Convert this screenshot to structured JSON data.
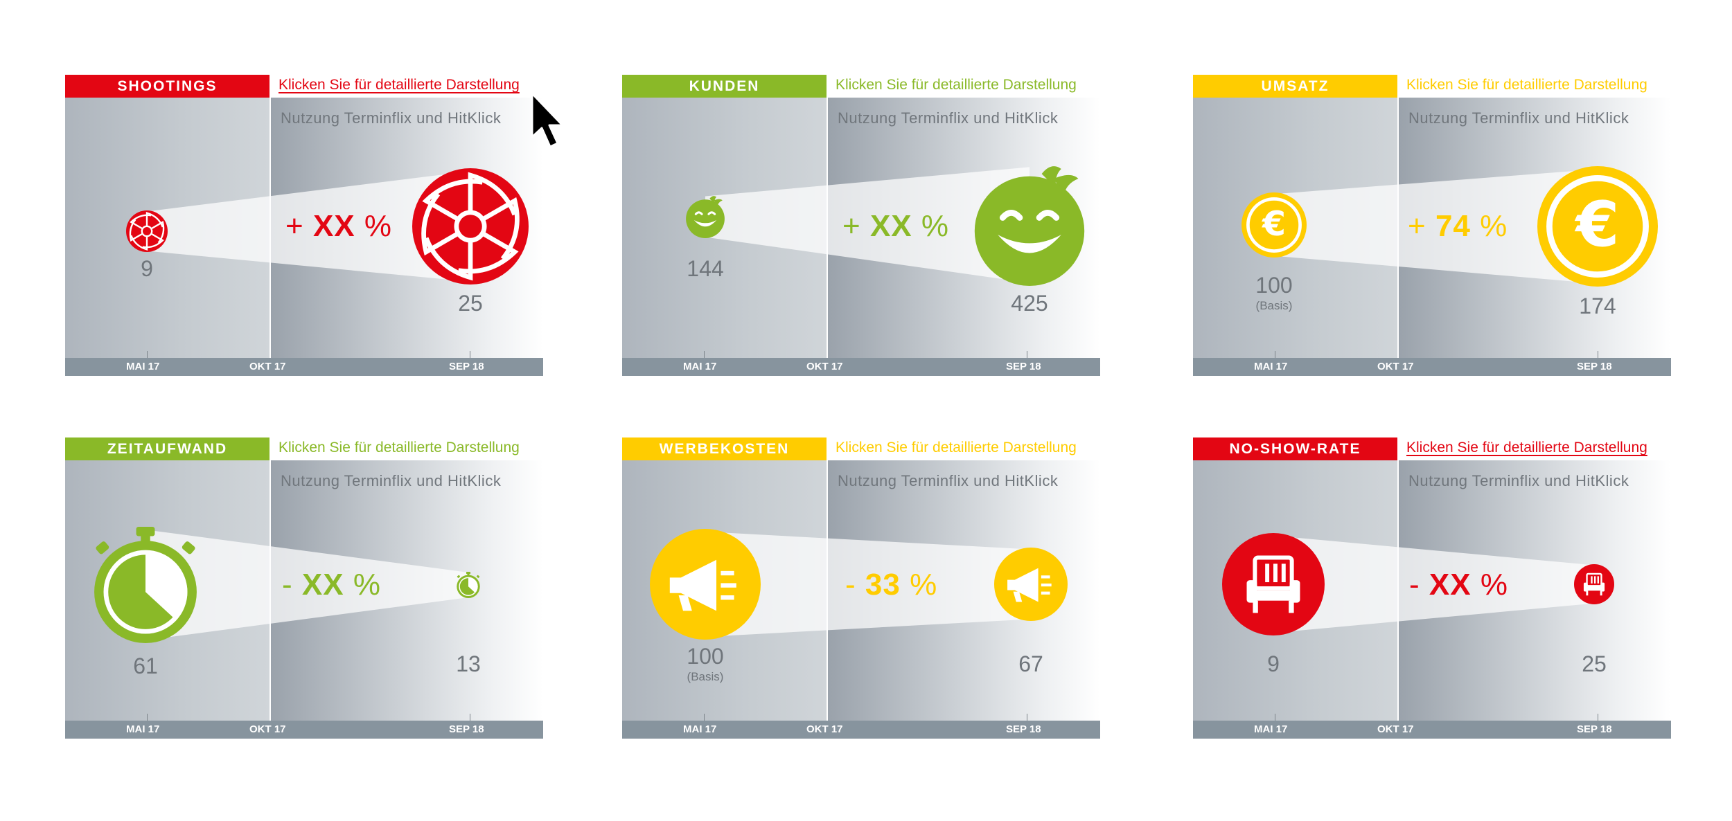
{
  "colors": {
    "red": "#e30613",
    "green": "#8ab928",
    "yellow": "#ffcc00",
    "gray_text": "#6f757b",
    "axis_bg": "#87949e"
  },
  "subtitle": "Nutzung Terminflix und HitKlick",
  "cards": [
    {
      "category": "SHOOTINGS",
      "link": "Klicken Sie für detaillierte Darstellung",
      "sign": "+",
      "pct": "XX",
      "pct_symbol": "%",
      "value_start": "9",
      "value_end": "25",
      "icon": "shutter-icon",
      "color": "red",
      "axis": [
        "MAI 17",
        "OKT 17",
        "SEP 18"
      ]
    },
    {
      "category": "KUNDEN",
      "link": "Klicken Sie für detaillierte Darstellung",
      "sign": "+",
      "pct": "XX",
      "pct_symbol": "%",
      "value_start": "144",
      "value_end": "425",
      "icon": "smiley-icon",
      "color": "green",
      "axis": [
        "MAI 17",
        "OKT 17",
        "SEP 18"
      ]
    },
    {
      "category": "UMSATZ",
      "link": "Klicken Sie für detaillierte Darstellung",
      "sign": "+",
      "pct": "74",
      "pct_symbol": "%",
      "value_start": "100",
      "value_start_note": "(Basis)",
      "value_end": "174",
      "icon": "euro-coin-icon",
      "color": "yellow",
      "axis": [
        "MAI 17",
        "OKT 17",
        "SEP 18"
      ]
    },
    {
      "category": "ZEITAUFWAND",
      "link": "Klicken Sie für detaillierte Darstellung",
      "sign": "-",
      "pct": "XX",
      "pct_symbol": "%",
      "value_start": "61",
      "value_end": "13",
      "icon": "stopwatch-icon",
      "color": "green",
      "axis": [
        "MAI 17",
        "OKT 17",
        "SEP 18"
      ]
    },
    {
      "category": "WERBEKOSTEN",
      "link": "Klicken Sie für detaillierte Darstellung",
      "sign": "-",
      "pct": "33",
      "pct_symbol": "%",
      "value_start": "100",
      "value_start_note": "(Basis)",
      "value_end": "67",
      "icon": "megaphone-icon",
      "color": "yellow",
      "axis": [
        "MAI 17",
        "OKT 17",
        "SEP 18"
      ]
    },
    {
      "category": "NO-SHOW-RATE",
      "link": "Klicken Sie für detaillierte Darstellung",
      "sign": "-",
      "pct": "XX",
      "pct_symbol": "%",
      "value_start": "9",
      "value_end": "25",
      "icon": "armchair-icon",
      "color": "red",
      "axis": [
        "MAI 17",
        "OKT 17",
        "SEP 18"
      ]
    }
  ],
  "cursor_icon": "mouse-pointer-icon"
}
